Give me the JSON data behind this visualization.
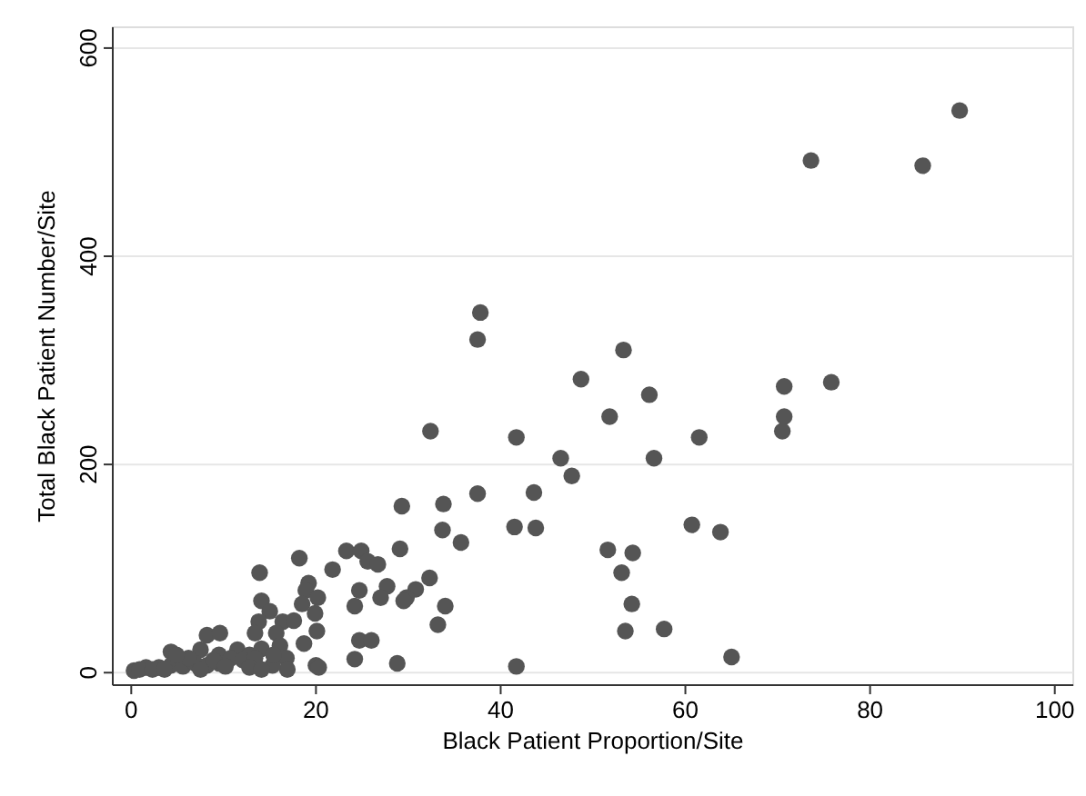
{
  "chart_data": {
    "type": "scatter",
    "xlabel": "Black Patient Proportion/Site",
    "ylabel": "Total Black Patient Number/Site",
    "xlim": [
      -2,
      102
    ],
    "ylim": [
      -12,
      620
    ],
    "xticks": [
      0,
      20,
      40,
      60,
      80,
      100
    ],
    "yticks": [
      0,
      200,
      400,
      600
    ],
    "grid": "y",
    "marker": "circle",
    "series": [
      {
        "color": "#555555",
        "x": [
          73.6,
          85.7,
          89.7,
          75.8,
          37.8,
          37.5,
          53.3,
          48.7,
          56.1,
          70.7,
          51.8,
          70.7,
          70.5,
          41.7,
          61.5,
          46.5,
          56.6,
          47.7,
          37.5,
          43.6,
          35.7,
          41.5,
          43.8,
          60.7,
          63.8,
          51.6,
          54.3,
          53.1,
          54.2,
          53.5,
          57.7,
          65.0,
          41.7,
          32.4,
          29.3,
          33.8,
          33.7,
          18.2,
          23.3,
          24.9,
          25.6,
          26.7,
          29.1,
          21.8,
          13.9,
          19.2,
          18.9,
          18.5,
          20.2,
          14.1,
          15.0,
          24.7,
          24.2,
          27.7,
          27.0,
          32.3,
          30.8,
          29.8,
          29.5,
          34.0,
          33.2,
          19.9,
          20.1,
          16.4,
          17.6,
          13.8,
          13.4,
          15.7,
          16.1,
          18.7,
          24.7,
          26.0,
          24.2,
          28.8,
          16.8,
          16.9,
          15.3,
          20.0,
          20.3,
          8.2,
          9.6,
          7.5,
          4.3,
          9.5,
          11.5,
          12.8,
          14.1,
          0.3,
          1.6,
          3.0,
          4.3,
          5.6,
          6.9,
          8.2,
          9.5,
          10.8,
          12.1,
          6.2,
          4.9,
          8.9,
          13.4,
          15.4,
          0.9,
          2.3,
          3.6,
          7.5,
          10.2,
          12.8,
          14.1
        ],
        "values": [
          492,
          487,
          540,
          279,
          346,
          320,
          310,
          282,
          267,
          275,
          246,
          246,
          232,
          226,
          226,
          206,
          206,
          189,
          172,
          173,
          125,
          140,
          139,
          142,
          135,
          118,
          115,
          96,
          66,
          40,
          42,
          15,
          6,
          232,
          160,
          162,
          137,
          110,
          117,
          117,
          107,
          104,
          119,
          99,
          96,
          86,
          79,
          66,
          72,
          69,
          59,
          79,
          64,
          83,
          72,
          91,
          80,
          72,
          69,
          64,
          46,
          57,
          40,
          49,
          50,
          49,
          38,
          38,
          26,
          28,
          31,
          31,
          13,
          9,
          14,
          3,
          7,
          7,
          5,
          36,
          38,
          22,
          20,
          17,
          22,
          17,
          23,
          2,
          5,
          5,
          7,
          6,
          9,
          7,
          9,
          14,
          12,
          14,
          17,
          12,
          14,
          17,
          3,
          3,
          3,
          3,
          6,
          5,
          3
        ]
      }
    ]
  }
}
